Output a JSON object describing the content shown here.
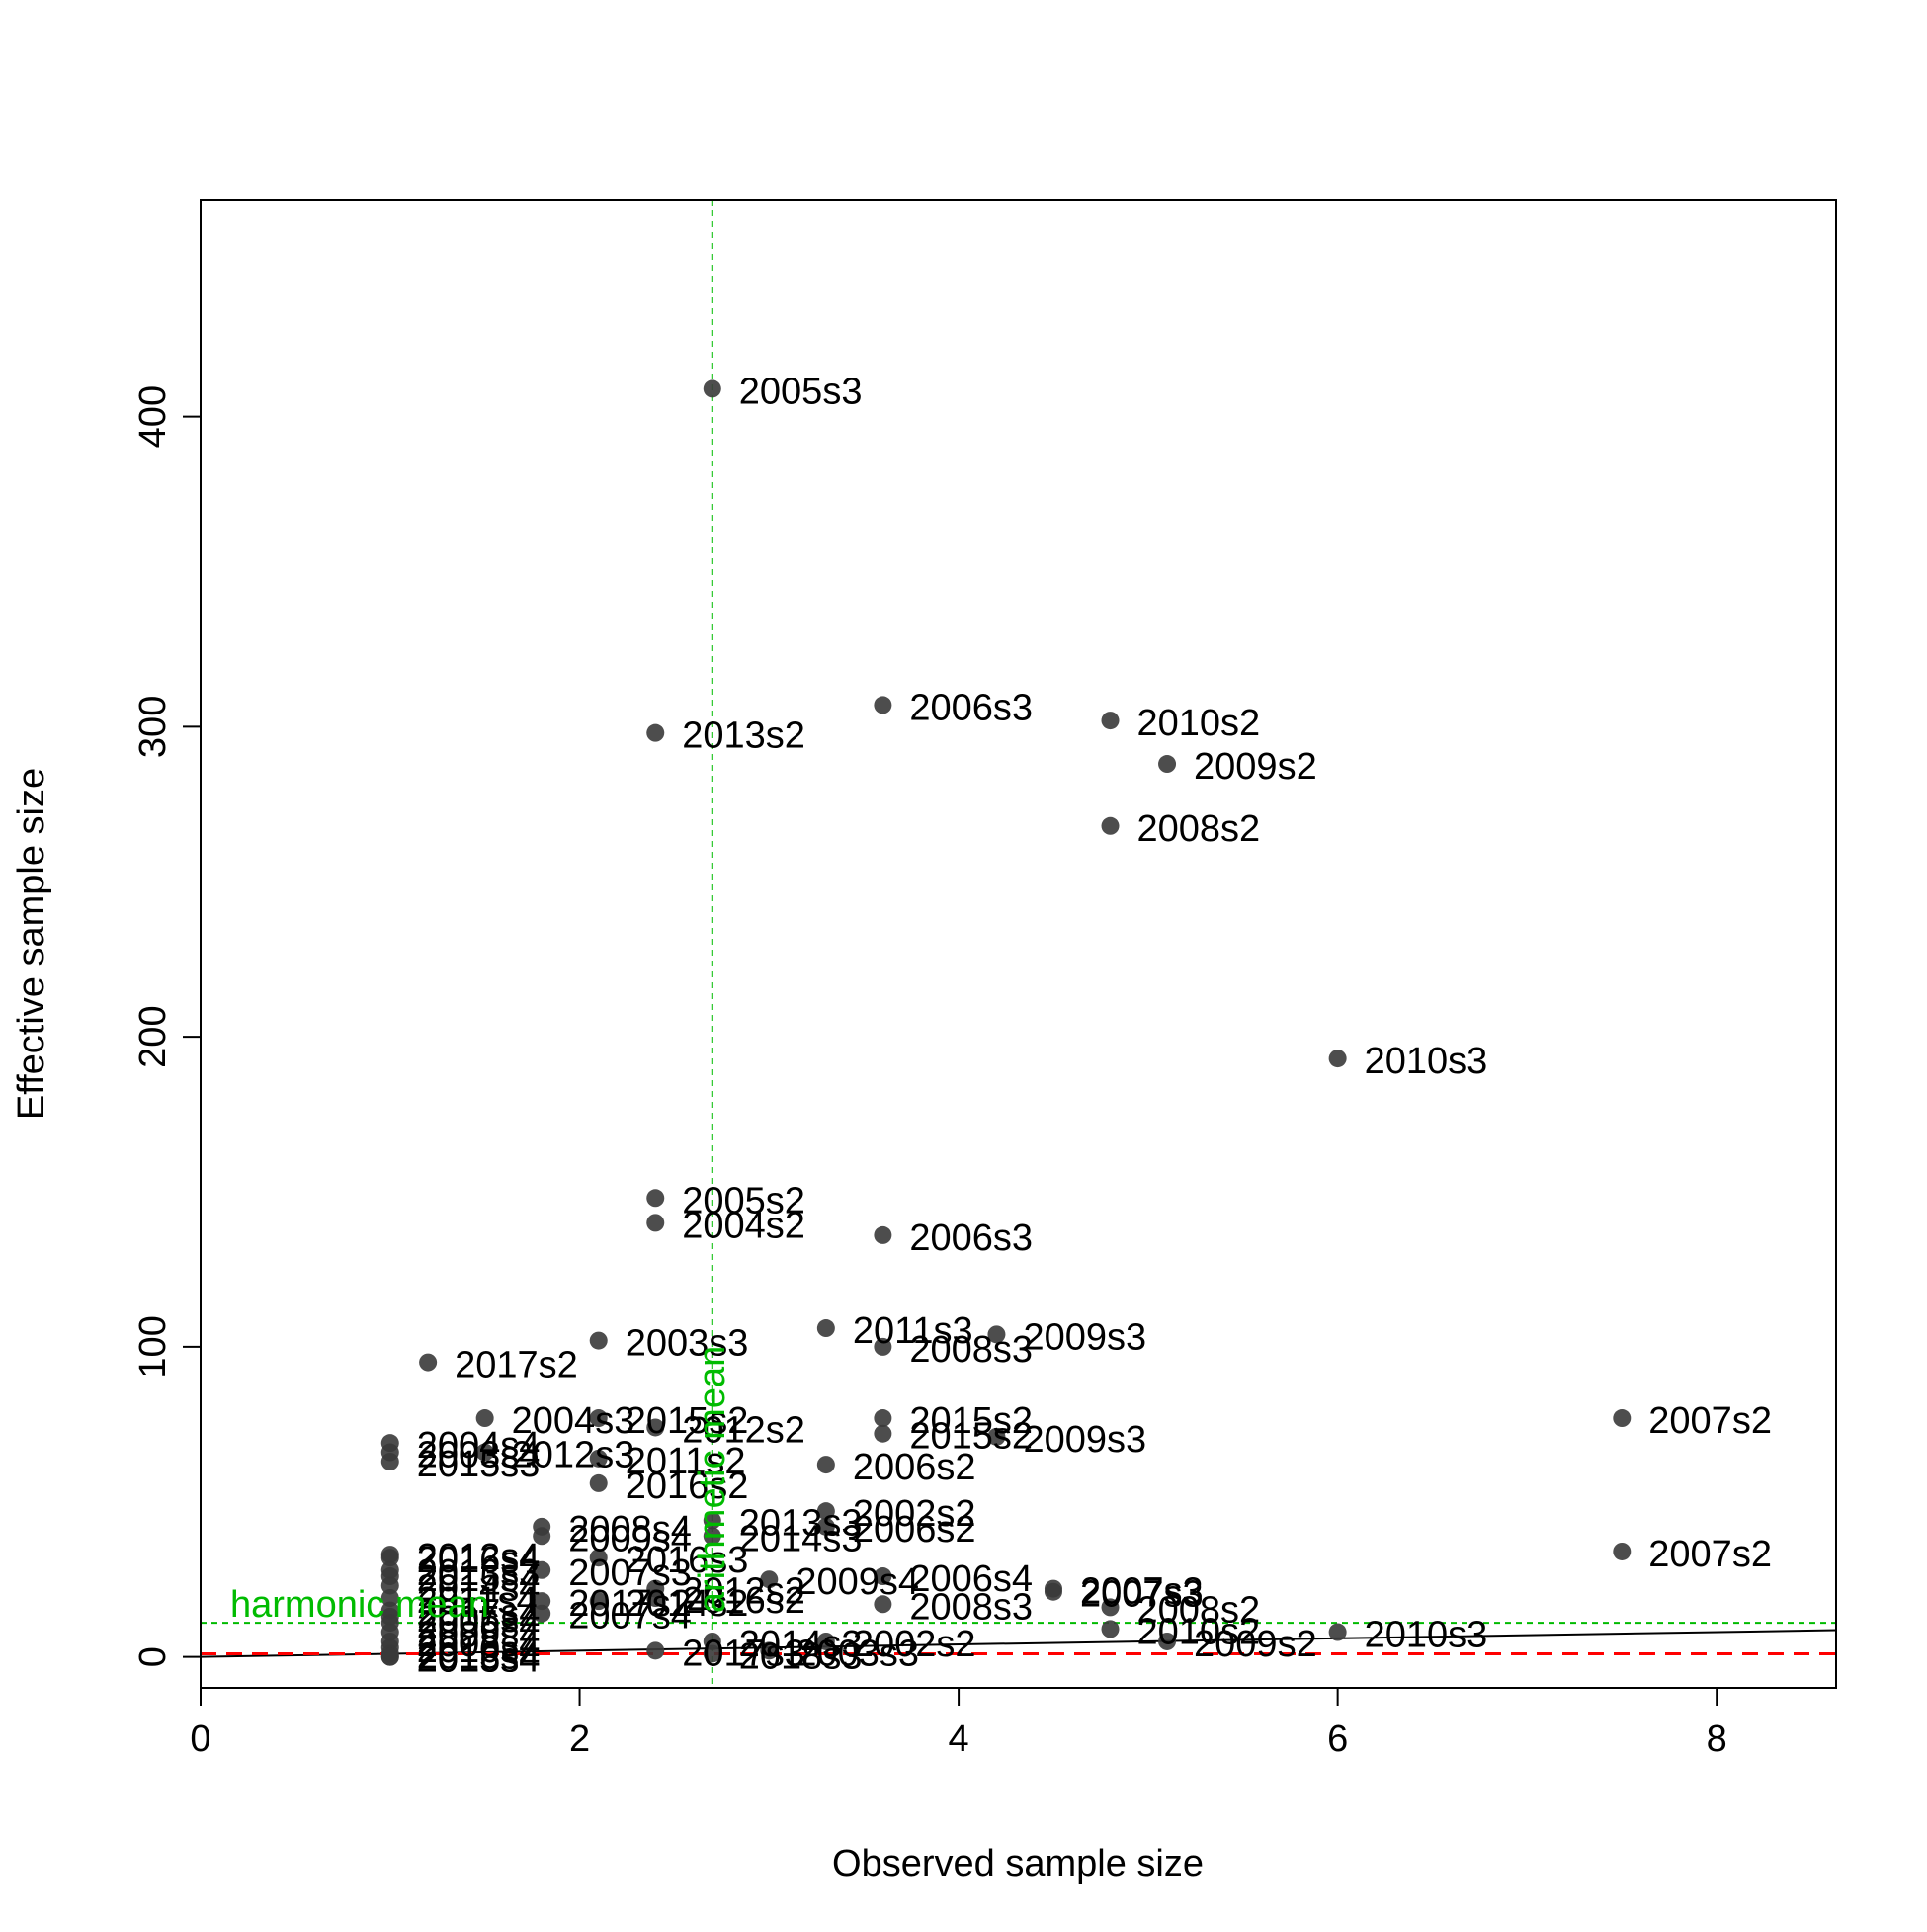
{
  "chart_data": {
    "type": "scatter",
    "title": "",
    "xlabel": "Observed sample size",
    "ylabel": "Effective sample size",
    "xlim": [
      0,
      8.63
    ],
    "ylim": [
      -10,
      470
    ],
    "x_ticks": [
      "0",
      "2",
      "4",
      "6",
      "8"
    ],
    "y_ticks": [
      "0",
      "100",
      "200",
      "300",
      "400"
    ],
    "grid": false,
    "legend": "none",
    "point_color": "#3a3a3a",
    "reference_lines": {
      "arithmetic_mean": {
        "x": 2.7,
        "label": "arithmetic mean",
        "color": "#00bb00"
      },
      "harmonic_mean": {
        "y": 11,
        "label": "harmonic mean",
        "color": "#00bb00"
      },
      "one_to_one": {
        "color": "#000000"
      },
      "zero_line": {
        "y": 1,
        "color": "#ff0000"
      }
    },
    "points": [
      {
        "x": 2.7,
        "y": 409,
        "label": "2005s3"
      },
      {
        "x": 3.6,
        "y": 307,
        "label": "2006s3"
      },
      {
        "x": 4.8,
        "y": 302,
        "label": "2010s2"
      },
      {
        "x": 2.4,
        "y": 298,
        "label": "2013s2"
      },
      {
        "x": 5.1,
        "y": 288,
        "label": "2009s2"
      },
      {
        "x": 4.8,
        "y": 268,
        "label": "2008s2"
      },
      {
        "x": 6.0,
        "y": 193,
        "label": "2010s3"
      },
      {
        "x": 2.4,
        "y": 148,
        "label": "2005s2"
      },
      {
        "x": 2.4,
        "y": 140,
        "label": "2004s2"
      },
      {
        "x": 3.6,
        "y": 136,
        "label": "2006s3"
      },
      {
        "x": 3.3,
        "y": 106,
        "label": "2011s3"
      },
      {
        "x": 4.2,
        "y": 104,
        "label": "2009s3"
      },
      {
        "x": 2.1,
        "y": 102,
        "label": "2003s3"
      },
      {
        "x": 3.6,
        "y": 100,
        "label": "2008s3"
      },
      {
        "x": 1.2,
        "y": 95,
        "label": "2017s2"
      },
      {
        "x": 7.5,
        "y": 77,
        "label": "2007s2"
      },
      {
        "x": 1.5,
        "y": 77,
        "label": "2004s3"
      },
      {
        "x": 2.1,
        "y": 77,
        "label": "2015s2"
      },
      {
        "x": 3.6,
        "y": 77,
        "label": "2015s2"
      },
      {
        "x": 2.4,
        "y": 74,
        "label": "2012s2"
      },
      {
        "x": 3.6,
        "y": 72,
        "label": "2015s2"
      },
      {
        "x": 4.2,
        "y": 71,
        "label": "2009s3"
      },
      {
        "x": 1.0,
        "y": 69,
        "label": "2004s4"
      },
      {
        "x": 1.0,
        "y": 66,
        "label": "2003s4"
      },
      {
        "x": 1.5,
        "y": 66,
        "label": "2012s3"
      },
      {
        "x": 2.1,
        "y": 64,
        "label": "2011s2"
      },
      {
        "x": 1.0,
        "y": 63,
        "label": "2015s3"
      },
      {
        "x": 3.3,
        "y": 62,
        "label": "2006s2"
      },
      {
        "x": 2.1,
        "y": 56,
        "label": "2016s2"
      },
      {
        "x": 3.3,
        "y": 47,
        "label": "2002s2"
      },
      {
        "x": 2.7,
        "y": 44,
        "label": "2013s3"
      },
      {
        "x": 1.8,
        "y": 42,
        "label": "2008s4"
      },
      {
        "x": 3.3,
        "y": 42,
        "label": "2006s2"
      },
      {
        "x": 1.8,
        "y": 39,
        "label": "2009s4"
      },
      {
        "x": 2.7,
        "y": 39,
        "label": "2014s3"
      },
      {
        "x": 7.5,
        "y": 34,
        "label": "2007s2"
      },
      {
        "x": 1.0,
        "y": 33,
        "label": "2012s4"
      },
      {
        "x": 1.0,
        "y": 32,
        "label": "2016s4"
      },
      {
        "x": 2.1,
        "y": 32,
        "label": "2016s3"
      },
      {
        "x": 1.0,
        "y": 28,
        "label": "2013s3"
      },
      {
        "x": 1.8,
        "y": 28,
        "label": "2007s3"
      },
      {
        "x": 1.0,
        "y": 26,
        "label": "2015s4"
      },
      {
        "x": 3.0,
        "y": 25,
        "label": "2009s4"
      },
      {
        "x": 3.6,
        "y": 26,
        "label": "2006s4"
      },
      {
        "x": 1.0,
        "y": 23,
        "label": "2014s4"
      },
      {
        "x": 2.4,
        "y": 22,
        "label": "2012s2"
      },
      {
        "x": 4.5,
        "y": 21,
        "label": "2007s3"
      },
      {
        "x": 4.5,
        "y": 22,
        "label": "2007s3"
      },
      {
        "x": 1.0,
        "y": 19,
        "label": "2011s4"
      },
      {
        "x": 2.4,
        "y": 19,
        "label": "2016s2"
      },
      {
        "x": 1.8,
        "y": 18,
        "label": "2017s2"
      },
      {
        "x": 2.1,
        "y": 18,
        "label": "2014s2"
      },
      {
        "x": 3.6,
        "y": 17,
        "label": "2008s3"
      },
      {
        "x": 4.8,
        "y": 16,
        "label": "2008s2"
      },
      {
        "x": 1.0,
        "y": 15,
        "label": "2017s4"
      },
      {
        "x": 1.8,
        "y": 14,
        "label": "2007s4"
      },
      {
        "x": 1.0,
        "y": 13,
        "label": "2005s4"
      },
      {
        "x": 1.0,
        "y": 11,
        "label": "2006s4"
      },
      {
        "x": 4.8,
        "y": 9,
        "label": "2010s2"
      },
      {
        "x": 6.0,
        "y": 8,
        "label": "2010s3"
      },
      {
        "x": 1.0,
        "y": 8,
        "label": "2009s4"
      },
      {
        "x": 5.1,
        "y": 5,
        "label": "2009s2"
      },
      {
        "x": 3.3,
        "y": 5,
        "label": "2002s2"
      },
      {
        "x": 2.7,
        "y": 5,
        "label": "2014s3"
      },
      {
        "x": 1.0,
        "y": 5,
        "label": "2008s4"
      },
      {
        "x": 1.0,
        "y": 3,
        "label": "2010s4"
      },
      {
        "x": 2.4,
        "y": 2,
        "label": "2017s3"
      },
      {
        "x": 3.0,
        "y": 2,
        "label": "2003s3"
      },
      {
        "x": 1.0,
        "y": 1,
        "label": "2013s4"
      },
      {
        "x": 1.0,
        "y": 0,
        "label": "2015s4"
      },
      {
        "x": 2.7,
        "y": 1,
        "label": "2018s3"
      },
      {
        "x": 1.0,
        "y": 0,
        "label": "2016s4"
      }
    ]
  }
}
